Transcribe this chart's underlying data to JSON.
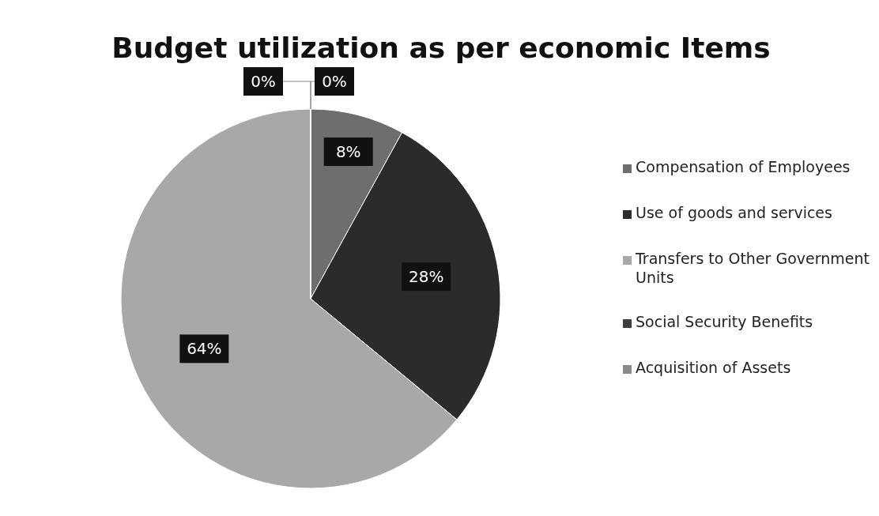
{
  "chart_data": {
    "type": "pie",
    "title": "Budget utilization as per economic Items",
    "categories": [
      "Compensation of Employees",
      "Use of goods and services",
      "Transfers to Other Government Units",
      "Social Security Benefits",
      "Acquisition of Assets"
    ],
    "values": [
      8,
      28,
      64,
      0,
      0
    ],
    "value_labels": [
      "8%",
      "28%",
      "64%",
      "0%",
      "0%"
    ],
    "colors": [
      "#6e6e6e",
      "#2b2b2b",
      "#a8a8a8",
      "#3c3c3c",
      "#8a8a8a"
    ],
    "legend": "right"
  }
}
